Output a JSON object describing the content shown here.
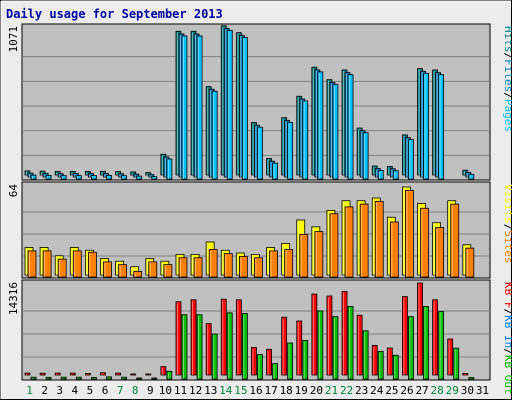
{
  "colors": {
    "background": "#ececec",
    "panel": "#c0c0c0",
    "frame": "#000000",
    "title": "#0000a0",
    "pages": "#00c0ff",
    "files": "#0080c0",
    "hits": "#008080",
    "visits": "#ffff00",
    "sites": "#ff8000",
    "kb_in": "#0080ff",
    "kb_out": "#00c000",
    "kb_f": "#ff0000",
    "ylabel": "#000000",
    "weekend_day": "#008040",
    "day": "#000000"
  },
  "title": "Daily usage for September 2013",
  "chart_data": [
    {
      "type": "bar",
      "title": "Daily usage for September 2013",
      "ymax_label": "1071",
      "ylim": [
        0,
        1071
      ],
      "legend": [
        {
          "label": "Hits",
          "color": "#008080"
        },
        {
          "label": "/",
          "color": "#000000"
        },
        {
          "label": "Files",
          "color": "#0080c0"
        },
        {
          "label": "/",
          "color": "#000000"
        },
        {
          "label": "Pages",
          "color": "#00c0ff"
        }
      ],
      "series": [
        {
          "name": "Hits",
          "color": "#008080",
          "values": [
            30,
            28,
            25,
            26,
            26,
            27,
            25,
            22,
            18,
            150,
            1040,
            1040,
            640,
            1080,
            1030,
            380,
            120,
            415,
            570,
            780,
            690,
            760,
            340,
            65,
            62,
            290,
            770,
            760,
            0,
            35,
            0
          ]
        },
        {
          "name": "Files",
          "color": "#0080c0",
          "values": [
            28,
            26,
            24,
            25,
            25,
            26,
            24,
            21,
            17,
            145,
            1035,
            1035,
            635,
            1075,
            1025,
            375,
            115,
            410,
            565,
            775,
            685,
            755,
            335,
            62,
            60,
            285,
            765,
            755,
            0,
            33,
            0
          ]
        },
        {
          "name": "Pages",
          "color": "#00c0ff",
          "values": [
            28,
            26,
            24,
            25,
            25,
            26,
            24,
            21,
            17,
            145,
            1035,
            1035,
            635,
            1075,
            1025,
            375,
            115,
            410,
            565,
            775,
            685,
            755,
            335,
            62,
            60,
            285,
            765,
            755,
            0,
            33,
            0
          ]
        }
      ]
    },
    {
      "type": "bar",
      "ymax_label": "64",
      "ylim": [
        0,
        64
      ],
      "legend": [
        {
          "label": "Visits",
          "color": "#ffff00"
        },
        {
          "label": "/",
          "color": "#000000"
        },
        {
          "label": "Sites",
          "color": "#ff8000"
        }
      ],
      "series": [
        {
          "name": "Visits",
          "color": "#ffff00",
          "values": [
            20,
            20,
            14,
            20,
            18,
            12,
            10,
            6,
            12,
            10,
            15,
            15,
            24,
            18,
            16,
            15,
            20,
            23,
            40,
            35,
            47,
            54,
            54,
            56,
            42,
            64,
            52,
            38,
            54,
            22,
            0
          ]
        },
        {
          "name": "Sites",
          "color": "#ff8000",
          "values": [
            19,
            19,
            13,
            19,
            18,
            11,
            9,
            4,
            11,
            9,
            14,
            14,
            20,
            17,
            15,
            14,
            19,
            20,
            31,
            33,
            46,
            51,
            53,
            55,
            40,
            63,
            50,
            36,
            53,
            21,
            0
          ]
        }
      ]
    },
    {
      "type": "bar",
      "ymax_label": "14316",
      "ylim": [
        0,
        14316
      ],
      "legend": [
        {
          "label": "KB F",
          "color": "#ff0000"
        },
        {
          "label": "/",
          "color": "#000000"
        },
        {
          "label": "KB In",
          "color": "#0080ff"
        },
        {
          "label": "/",
          "color": "#000000"
        },
        {
          "label": "KB Out",
          "color": "#00c000"
        }
      ],
      "series": [
        {
          "name": "KB F",
          "color": "#ff0000",
          "values": [
            300,
            280,
            300,
            300,
            250,
            350,
            300,
            150,
            80,
            1300,
            11400,
            11700,
            8000,
            11800,
            11700,
            4300,
            4000,
            9000,
            8400,
            12600,
            12300,
            13000,
            9300,
            4600,
            4200,
            12200,
            14316,
            11700,
            5600,
            250,
            0
          ]
        },
        {
          "name": "KB In",
          "color": "#0080ff",
          "values": [
            0,
            0,
            0,
            0,
            0,
            0,
            0,
            0,
            0,
            0,
            0,
            0,
            0,
            0,
            0,
            0,
            0,
            0,
            0,
            0,
            0,
            0,
            0,
            0,
            0,
            0,
            0,
            0,
            0,
            0,
            0
          ]
        },
        {
          "name": "KB Out",
          "color": "#00c000",
          "values": [
            280,
            260,
            280,
            280,
            230,
            330,
            280,
            130,
            70,
            1200,
            10000,
            10000,
            7000,
            10300,
            10200,
            3800,
            2400,
            5600,
            6000,
            10600,
            9700,
            11300,
            7500,
            4300,
            3700,
            9700,
            11300,
            10500,
            4800,
            230,
            0
          ]
        }
      ]
    }
  ],
  "x_labels": [
    {
      "label": "1",
      "weekend": true
    },
    {
      "label": "2",
      "weekend": false
    },
    {
      "label": "3",
      "weekend": false
    },
    {
      "label": "4",
      "weekend": false
    },
    {
      "label": "5",
      "weekend": false
    },
    {
      "label": "6",
      "weekend": false
    },
    {
      "label": "7",
      "weekend": true
    },
    {
      "label": "8",
      "weekend": true
    },
    {
      "label": "9",
      "weekend": false
    },
    {
      "label": "10",
      "weekend": false
    },
    {
      "label": "11",
      "weekend": false
    },
    {
      "label": "12",
      "weekend": false
    },
    {
      "label": "13",
      "weekend": false
    },
    {
      "label": "14",
      "weekend": true
    },
    {
      "label": "15",
      "weekend": true
    },
    {
      "label": "16",
      "weekend": false
    },
    {
      "label": "17",
      "weekend": false
    },
    {
      "label": "18",
      "weekend": false
    },
    {
      "label": "19",
      "weekend": false
    },
    {
      "label": "20",
      "weekend": false
    },
    {
      "label": "21",
      "weekend": true
    },
    {
      "label": "22",
      "weekend": true
    },
    {
      "label": "23",
      "weekend": false
    },
    {
      "label": "24",
      "weekend": false
    },
    {
      "label": "25",
      "weekend": false
    },
    {
      "label": "26",
      "weekend": false
    },
    {
      "label": "27",
      "weekend": false
    },
    {
      "label": "28",
      "weekend": true
    },
    {
      "label": "29",
      "weekend": true
    },
    {
      "label": "30",
      "weekend": false
    },
    {
      "label": "31",
      "weekend": false
    }
  ]
}
